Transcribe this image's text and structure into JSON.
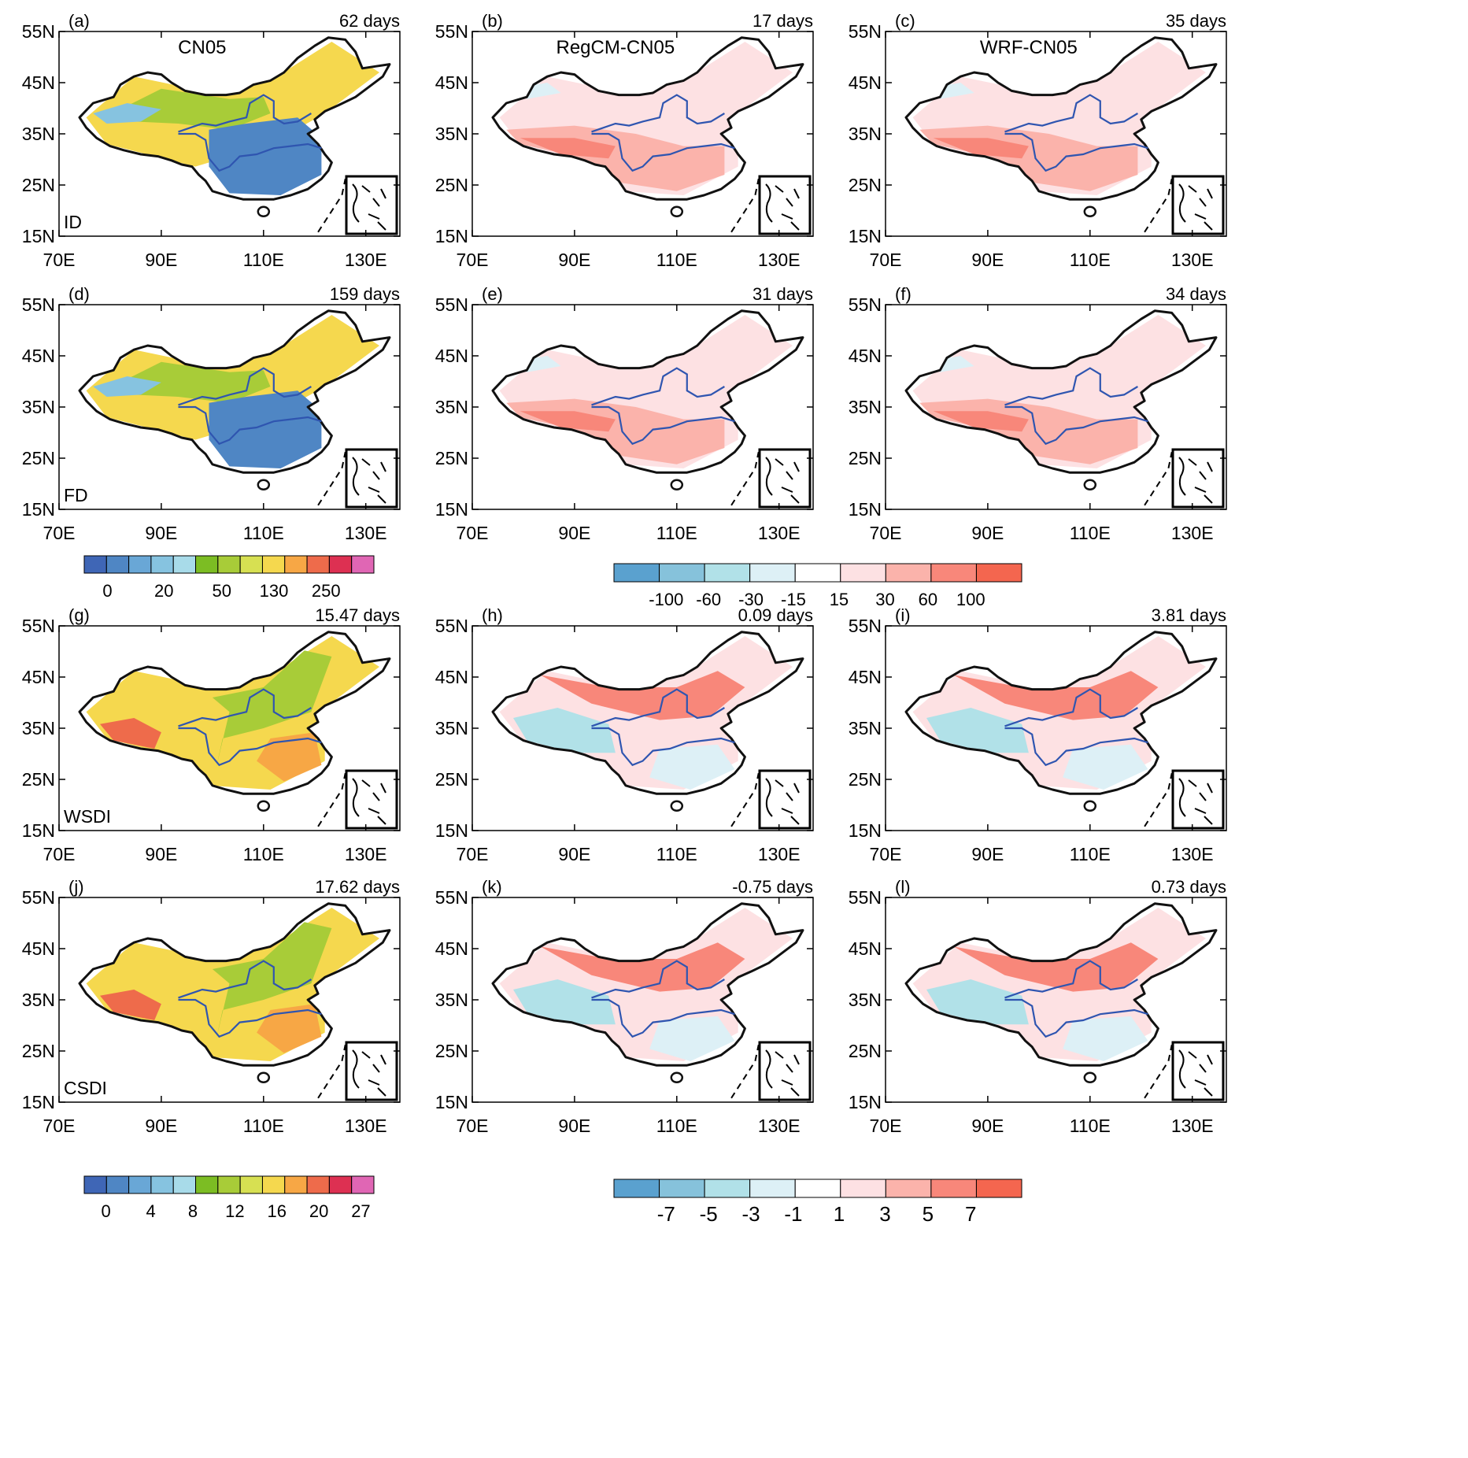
{
  "axes": {
    "lat_ticks": [
      "55N",
      "45N",
      "35N",
      "25N",
      "15N"
    ],
    "lon_ticks": [
      "70E",
      "90E",
      "110E",
      "130E"
    ]
  },
  "panels": [
    {
      "id": "a",
      "tag": "(a)",
      "stat": "62 days",
      "title": "CN05",
      "index_label": "ID",
      "scale": "clim1"
    },
    {
      "id": "b",
      "tag": "(b)",
      "stat": "17 days",
      "title": "RegCM-CN05",
      "index_label": "",
      "scale": "diff1"
    },
    {
      "id": "c",
      "tag": "(c)",
      "stat": "35 days",
      "title": "WRF-CN05",
      "index_label": "",
      "scale": "diff1"
    },
    {
      "id": "d",
      "tag": "(d)",
      "stat": "159 days",
      "title": "",
      "index_label": "FD",
      "scale": "clim1"
    },
    {
      "id": "e",
      "tag": "(e)",
      "stat": "31 days",
      "title": "",
      "index_label": "",
      "scale": "diff1"
    },
    {
      "id": "f",
      "tag": "(f)",
      "stat": "34 days",
      "title": "",
      "index_label": "",
      "scale": "diff1"
    },
    {
      "id": "g",
      "tag": "(g)",
      "stat": "15.47 days",
      "title": "",
      "index_label": "WSDI",
      "scale": "clim2"
    },
    {
      "id": "h",
      "tag": "(h)",
      "stat": "0.09 days",
      "title": "",
      "index_label": "",
      "scale": "diff2"
    },
    {
      "id": "i",
      "tag": "(i)",
      "stat": "3.81 days",
      "title": "",
      "index_label": "",
      "scale": "diff2"
    },
    {
      "id": "j",
      "tag": "(j)",
      "stat": "17.62 days",
      "title": "",
      "index_label": "CSDI",
      "scale": "clim2"
    },
    {
      "id": "k",
      "tag": "(k)",
      "stat": "-0.75 days",
      "title": "",
      "index_label": "",
      "scale": "diff2"
    },
    {
      "id": "l",
      "tag": "(l)",
      "stat": "0.73 days",
      "title": "",
      "index_label": "",
      "scale": "diff2"
    }
  ],
  "colorbars": [
    {
      "id": "cb1",
      "labels": [
        "0",
        "20",
        "50",
        "130",
        "250"
      ],
      "colors": [
        "#3f66b6",
        "#4f86c4",
        "#69a7d6",
        "#86c3e0",
        "#a8dbe9",
        "#7cbd23",
        "#a8cc38",
        "#d7e052",
        "#f5d84e",
        "#f7a745",
        "#ee6b4b",
        "#dd3052",
        "#e066b4"
      ]
    },
    {
      "id": "cb2",
      "labels": [
        "-100",
        "-60",
        "-30",
        "-15",
        "15",
        "30",
        "60",
        "100"
      ],
      "colors": [
        "#5aa1cf",
        "#86c2db",
        "#b1e1e8",
        "#ddf0f6",
        "#ffffff",
        "#fde1e3",
        "#fbb3ab",
        "#f8877a",
        "#f4664f"
      ]
    },
    {
      "id": "cb3",
      "labels": [
        "0",
        "4",
        "8",
        "12",
        "16",
        "20",
        "27"
      ],
      "colors": [
        "#3f66b6",
        "#4f86c4",
        "#69a7d6",
        "#86c3e0",
        "#a8dbe9",
        "#7cbd23",
        "#a8cc38",
        "#d7e052",
        "#f5d84e",
        "#f7a745",
        "#ee6b4b",
        "#dd3052",
        "#e066b4"
      ]
    },
    {
      "id": "cb4",
      "labels": [
        "-7",
        "-5",
        "-3",
        "-1",
        "1",
        "3",
        "5",
        "7"
      ],
      "colors": [
        "#5aa1cf",
        "#86c2db",
        "#b1e1e8",
        "#ddf0f6",
        "#ffffff",
        "#fde1e3",
        "#fbb3ab",
        "#f8877a",
        "#f4664f"
      ]
    }
  ],
  "colors": {
    "coast": "#111111",
    "river": "#2f55b0"
  }
}
